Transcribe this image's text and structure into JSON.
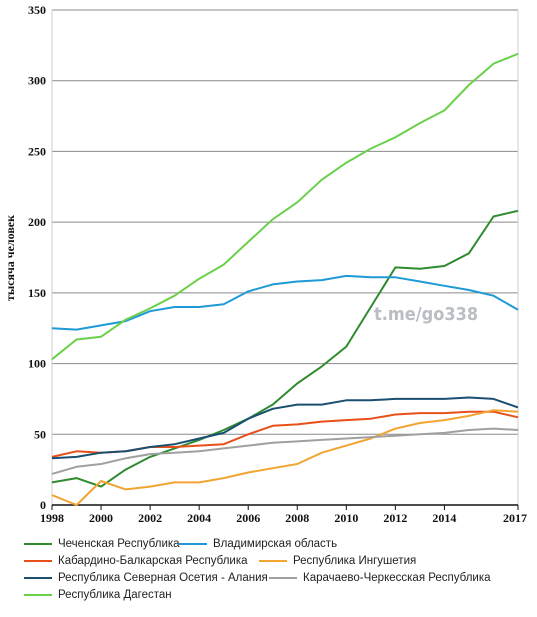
{
  "chart_data": {
    "type": "line",
    "title": "",
    "xlabel": "",
    "ylabel": "тысяча человек",
    "xlim": [
      1998,
      2017
    ],
    "ylim": [
      0,
      350
    ],
    "x_ticks": [
      "1998",
      "2000",
      "2002",
      "2004",
      "2006",
      "2008",
      "2010",
      "2012",
      "2014",
      "2017"
    ],
    "y_ticks": [
      "0",
      "50",
      "100",
      "150",
      "200",
      "250",
      "300",
      "350"
    ],
    "grid": "horizontal",
    "legend_position": "bottom",
    "watermark": "t.me/go338",
    "x": [
      1998,
      1999,
      2000,
      2001,
      2002,
      2003,
      2004,
      2005,
      2006,
      2007,
      2008,
      2009,
      2010,
      2011,
      2012,
      2013,
      2014,
      2015,
      2016,
      2017
    ],
    "series": [
      {
        "name": "Чеченская Республика",
        "color": "#2e8b2e",
        "values": [
          16,
          19,
          13,
          25,
          34,
          40,
          46,
          53,
          61,
          71,
          86,
          98,
          112,
          140,
          168,
          167,
          169,
          178,
          204,
          208
        ]
      },
      {
        "name": "Владимирская область",
        "color": "#1e9ad6",
        "values": [
          125,
          124,
          127,
          130,
          137,
          140,
          140,
          142,
          151,
          156,
          158,
          159,
          162,
          161,
          161,
          158,
          155,
          152,
          148,
          138
        ]
      },
      {
        "name": "Кабардино-Балкарская Республика",
        "color": "#e8501a",
        "values": [
          34,
          38,
          37,
          38,
          41,
          41,
          42,
          43,
          50,
          56,
          57,
          59,
          60,
          61,
          64,
          65,
          65,
          66,
          66,
          62
        ]
      },
      {
        "name": "Республика Ингушетия",
        "color": "#f2a532",
        "values": [
          7,
          0,
          17,
          11,
          13,
          16,
          16,
          19,
          23,
          26,
          29,
          37,
          42,
          47,
          54,
          58,
          60,
          63,
          67,
          66
        ]
      },
      {
        "name": "Республика Северная Осетия - Алания",
        "color": "#1b4f72",
        "values": [
          33,
          34,
          37,
          38,
          41,
          43,
          47,
          51,
          61,
          68,
          71,
          71,
          74,
          74,
          75,
          75,
          75,
          76,
          75,
          69
        ]
      },
      {
        "name": "Карачаево-Черкесская Республика",
        "color": "#a0a0a0",
        "values": [
          22,
          27,
          29,
          33,
          36,
          37,
          38,
          40,
          42,
          44,
          45,
          46,
          47,
          48,
          49,
          50,
          51,
          53,
          54,
          53
        ]
      },
      {
        "name": "Республика Дагестан",
        "color": "#6ad04a",
        "values": [
          103,
          117,
          119,
          131,
          139,
          148,
          160,
          170,
          186,
          202,
          214,
          230,
          242,
          252,
          260,
          270,
          279,
          297,
          312,
          319
        ]
      }
    ]
  }
}
